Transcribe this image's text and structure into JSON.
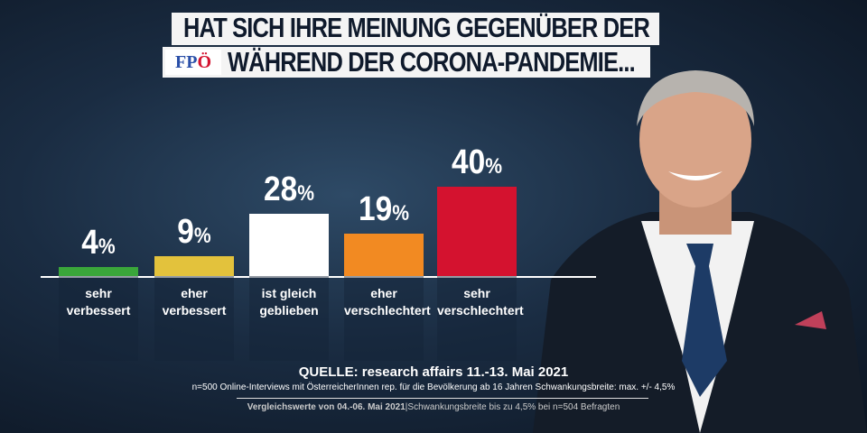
{
  "header": {
    "line1": "HAT SICH IHRE MEINUNG GEGENÜBER DER",
    "line2": "WÄHREND DER CORONA-PANDEMIE...",
    "logo": "FPÖ"
  },
  "chart_data": {
    "type": "bar",
    "categories": [
      "sehr verbessert",
      "eher verbessert",
      "ist gleich geblieben",
      "eher verschlechtert",
      "sehr verschlechtert"
    ],
    "values": [
      4,
      9,
      28,
      19,
      40
    ],
    "unit": "%",
    "colors": [
      "#3aa63a",
      "#e3c23c",
      "#ffffff",
      "#f28a22",
      "#d4122f"
    ],
    "ylim": [
      0,
      40
    ]
  },
  "source": {
    "title": "QUELLE: research affairs 11.-13. Mai 2021",
    "detail": "n=500 Online-Interviews mit ÖsterreicherInnen rep. für die Bevölkerung ab 16 Jahren  Schwankungsbreite: max. +/- 4,5%",
    "compare_bold": "Vergleichswerte von  04.-06. Mai 2021",
    "compare_rest": "|Schwankungsbreite bis zu 4,5% bei n=504 Befragten"
  }
}
